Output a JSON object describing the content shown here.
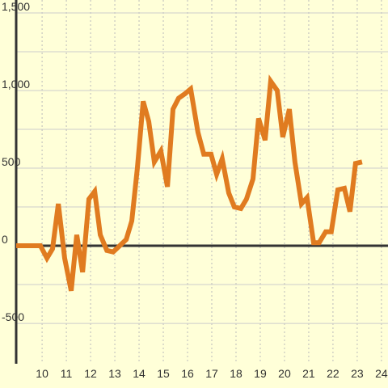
{
  "chart_data": {
    "type": "line",
    "x": [
      8.93,
      9.93,
      10.2,
      10.43,
      10.67,
      10.93,
      11.2,
      11.43,
      11.67,
      11.93,
      12.17,
      12.4,
      12.67,
      12.93,
      13.2,
      13.47,
      13.7,
      13.93,
      14.17,
      14.4,
      14.63,
      14.9,
      15.17,
      15.4,
      15.63,
      15.9,
      16.13,
      16.43,
      16.67,
      16.97,
      17.2,
      17.43,
      17.7,
      17.93,
      18.2,
      18.43,
      18.7,
      18.93,
      19.2,
      19.43,
      19.7,
      19.93,
      20.2,
      20.43,
      20.7,
      20.93,
      21.2,
      21.43,
      21.7,
      21.93,
      22.2,
      22.47,
      22.7,
      22.93,
      23.2
    ],
    "values": [
      0,
      0,
      -80,
      -20,
      270,
      -80,
      -290,
      70,
      -170,
      300,
      350,
      70,
      -30,
      -40,
      0,
      40,
      160,
      500,
      930,
      800,
      540,
      610,
      380,
      880,
      950,
      980,
      1010,
      730,
      590,
      590,
      460,
      560,
      340,
      250,
      240,
      300,
      430,
      820,
      680,
      1060,
      1000,
      700,
      880,
      540,
      270,
      310,
      20,
      20,
      90,
      90,
      360,
      370,
      220,
      530,
      540
    ],
    "color": "#e07b20",
    "xlim": [
      8.93,
      24.27
    ],
    "xticks": [
      10,
      11,
      12,
      13,
      14,
      15,
      16,
      17,
      18,
      19,
      20,
      21,
      22,
      23,
      24
    ],
    "ylim": [
      -760,
      1583
    ],
    "yticks": [
      -500,
      0,
      500,
      {
        "value": 1000,
        "label": "1,000"
      },
      {
        "value": 1500,
        "label": "1,500"
      }
    ],
    "yminor": [
      -250,
      250,
      750,
      1250
    ],
    "grid": true
  }
}
